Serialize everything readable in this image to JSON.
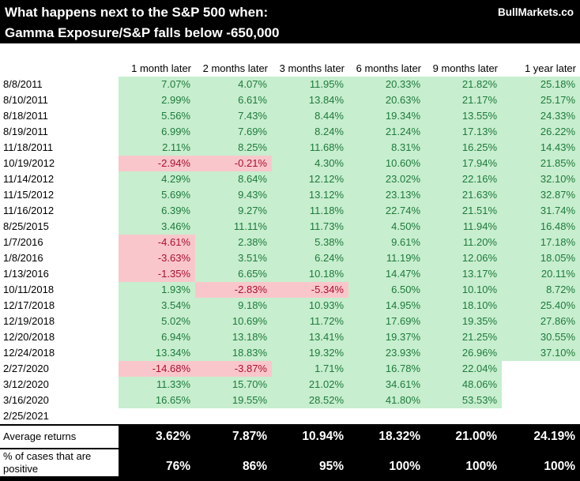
{
  "header": {
    "title_line1": "What happens next to the S&P 500 when:",
    "title_line2": "Gamma Exposure/S&P falls below -650,000",
    "brand": "BullMarkets.co"
  },
  "colors": {
    "positive_bg": "#C7EECE",
    "positive_text": "#1E7A3C",
    "negative_bg": "#F9C7CB",
    "negative_text": "#AB0F2F",
    "header_bg": "#000000",
    "header_text": "#FFFFFF"
  },
  "chart_data": {
    "type": "table",
    "title": "What happens next to the S&P 500 when: Gamma Exposure/S&P falls below -650,000",
    "column_headers": [
      "1 month later",
      "2 months later",
      "3 months later",
      "6 months later",
      "9 months later",
      "1 year later"
    ],
    "rows": [
      {
        "date": "8/8/2011",
        "values": [
          "7.07%",
          "4.07%",
          "11.95%",
          "20.33%",
          "21.82%",
          "25.18%"
        ]
      },
      {
        "date": "8/10/2011",
        "values": [
          "2.99%",
          "6.61%",
          "13.84%",
          "20.63%",
          "21.17%",
          "25.17%"
        ]
      },
      {
        "date": "8/18/2011",
        "values": [
          "5.56%",
          "7.43%",
          "8.44%",
          "19.34%",
          "13.55%",
          "24.33%"
        ]
      },
      {
        "date": "8/19/2011",
        "values": [
          "6.99%",
          "7.69%",
          "8.24%",
          "21.24%",
          "17.13%",
          "26.22%"
        ]
      },
      {
        "date": "11/18/2011",
        "values": [
          "2.11%",
          "8.25%",
          "11.68%",
          "8.31%",
          "16.25%",
          "14.43%"
        ]
      },
      {
        "date": "10/19/2012",
        "values": [
          "-2.94%",
          "-0.21%",
          "4.30%",
          "10.60%",
          "17.94%",
          "21.85%"
        ]
      },
      {
        "date": "11/14/2012",
        "values": [
          "4.29%",
          "8.64%",
          "12.12%",
          "23.02%",
          "22.16%",
          "32.10%"
        ]
      },
      {
        "date": "11/15/2012",
        "values": [
          "5.69%",
          "9.43%",
          "13.12%",
          "23.13%",
          "21.63%",
          "32.87%"
        ]
      },
      {
        "date": "11/16/2012",
        "values": [
          "6.39%",
          "9.27%",
          "11.18%",
          "22.74%",
          "21.51%",
          "31.74%"
        ]
      },
      {
        "date": "8/25/2015",
        "values": [
          "3.46%",
          "11.11%",
          "11.73%",
          "4.50%",
          "11.94%",
          "16.48%"
        ]
      },
      {
        "date": "1/7/2016",
        "values": [
          "-4.61%",
          "2.38%",
          "5.38%",
          "9.61%",
          "11.20%",
          "17.18%"
        ]
      },
      {
        "date": "1/8/2016",
        "values": [
          "-3.63%",
          "3.51%",
          "6.24%",
          "11.19%",
          "12.06%",
          "18.05%"
        ]
      },
      {
        "date": "1/13/2016",
        "values": [
          "-1.35%",
          "6.65%",
          "10.18%",
          "14.47%",
          "13.17%",
          "20.11%"
        ]
      },
      {
        "date": "10/11/2018",
        "values": [
          "1.93%",
          "-2.83%",
          "-5.34%",
          "6.50%",
          "10.10%",
          "8.72%"
        ]
      },
      {
        "date": "12/17/2018",
        "values": [
          "3.54%",
          "9.18%",
          "10.93%",
          "14.95%",
          "18.10%",
          "25.40%"
        ]
      },
      {
        "date": "12/19/2018",
        "values": [
          "5.02%",
          "10.69%",
          "11.72%",
          "17.69%",
          "19.35%",
          "27.86%"
        ]
      },
      {
        "date": "12/20/2018",
        "values": [
          "6.94%",
          "13.18%",
          "13.41%",
          "19.37%",
          "21.25%",
          "30.55%"
        ]
      },
      {
        "date": "12/24/2018",
        "values": [
          "13.34%",
          "18.83%",
          "19.32%",
          "23.93%",
          "26.96%",
          "37.10%"
        ]
      },
      {
        "date": "2/27/2020",
        "values": [
          "-14.68%",
          "-3.87%",
          "1.71%",
          "16.78%",
          "22.04%",
          ""
        ]
      },
      {
        "date": "3/12/2020",
        "values": [
          "11.33%",
          "15.70%",
          "21.02%",
          "34.61%",
          "48.06%",
          ""
        ]
      },
      {
        "date": "3/16/2020",
        "values": [
          "16.65%",
          "19.55%",
          "28.52%",
          "41.80%",
          "53.53%",
          ""
        ]
      },
      {
        "date": "2/25/2021",
        "values": [
          "",
          "",
          "",
          "",
          "",
          ""
        ]
      }
    ],
    "summary": {
      "average_label": "Average returns",
      "average_values": [
        "3.62%",
        "7.87%",
        "10.94%",
        "18.32%",
        "21.00%",
        "24.19%"
      ],
      "positive_label": "% of cases that are positive",
      "positive_values": [
        "76%",
        "86%",
        "95%",
        "100%",
        "100%",
        "100%"
      ]
    }
  }
}
